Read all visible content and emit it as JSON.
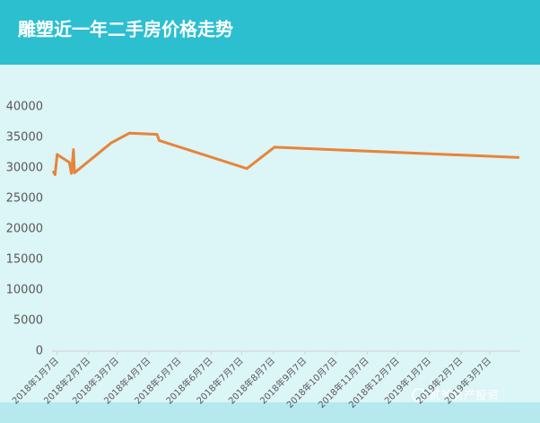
{
  "chart_data": {
    "type": "line",
    "title": "雕塑近一年二手房价格走势",
    "x": [
      "2018年1月3日",
      "2018年1月5日",
      "2018年1月7日",
      "2018年1月19日",
      "2018年1月21日",
      "2018年1月23日",
      "2018年1月24日",
      "2018年3月1日",
      "2018年3月19日",
      "2018年4月15日",
      "2018年4月17日",
      "2018年7月12日",
      "2018年8月8日",
      "2019年4月5日"
    ],
    "series": [
      {
        "name": "二手房价格",
        "color": "#e8843a",
        "values": [
          29500,
          28900,
          32200,
          30900,
          29100,
          33000,
          29200,
          34100,
          35700,
          35500,
          34500,
          29900,
          33400,
          31700
        ]
      }
    ],
    "xlim": [
      "2018年1月2日",
      "2019年4月6日"
    ],
    "xticks": [
      "2018年1月7日",
      "2018年2月7日",
      "2018年3月7日",
      "2018年4月7日",
      "2018年5月7日",
      "2018年6月7日",
      "2018年7月7日",
      "2018年8月7日",
      "2018年9月7日",
      "2018年10月7日",
      "2018年11月7日",
      "2018年12月7日",
      "2019年1月7日",
      "2019年2月7日",
      "2019年3月7日"
    ],
    "ylim": [
      0,
      40000
    ],
    "yticks": [
      0,
      5000,
      10000,
      15000,
      20000,
      25000,
      30000,
      35000,
      40000
    ],
    "grid": false,
    "watermark": "贰爷房产投资"
  }
}
